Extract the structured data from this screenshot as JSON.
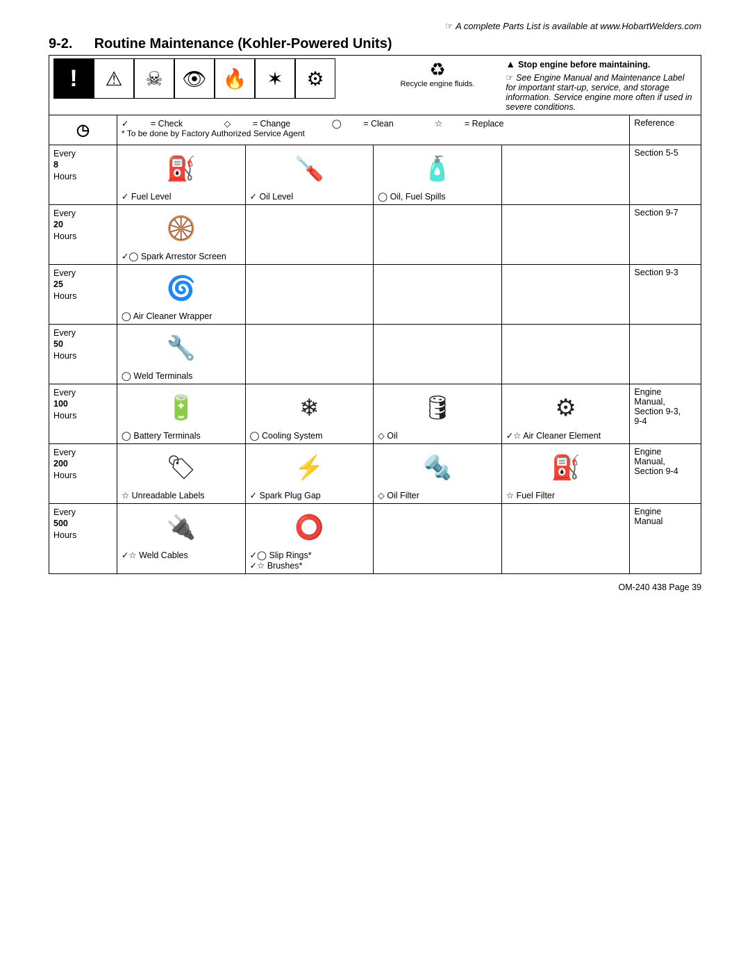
{
  "header": {
    "parts_link": "A complete Parts List is available at www.HobartWelders.com",
    "section_number": "9-2.",
    "section_title": "Routine Maintenance (Kohler-Powered Units)"
  },
  "warning": {
    "recycle_label": "Recycle engine\nfluids.",
    "stop_bold": "Stop engine before maintaining.",
    "stop_note": "See  Engine Manual and Maintenance Label for important start-up, service, and storage information.  Service engine more often if used in severe conditions."
  },
  "legend": {
    "check": "= Check",
    "change": "= Change",
    "clean": "= Clean",
    "replace": "= Replace",
    "note": "* To be done by Factory Authorized Service Agent",
    "reference": "Reference"
  },
  "rows": [
    {
      "interval": "Every\n<b>8</b>\nHours",
      "tasks": [
        {
          "glyph": "⛽",
          "sym": "✓",
          "label": "Fuel Level"
        },
        {
          "glyph": "🪛",
          "sym": "✓",
          "label": "Oil Level"
        },
        {
          "glyph": "🧴",
          "sym": "◯",
          "label": "Oil, Fuel Spills"
        },
        {
          "glyph": "",
          "sym": "",
          "label": ""
        }
      ],
      "ref": "Section 5-5"
    },
    {
      "interval": "Every\n<b>20</b>\nHours",
      "tasks": [
        {
          "glyph": "🛞",
          "sym": "✓◯",
          "label": "Spark Arrestor Screen"
        },
        {
          "glyph": "",
          "sym": "",
          "label": ""
        },
        {
          "glyph": "",
          "sym": "",
          "label": ""
        },
        {
          "glyph": "",
          "sym": "",
          "label": ""
        }
      ],
      "ref": "Section 9-7"
    },
    {
      "interval": "Every\n<b>25</b>\nHours",
      "tasks": [
        {
          "glyph": "🌀",
          "sym": "◯",
          "label": "Air Cleaner Wrapper"
        },
        {
          "glyph": "",
          "sym": "",
          "label": ""
        },
        {
          "glyph": "",
          "sym": "",
          "label": ""
        },
        {
          "glyph": "",
          "sym": "",
          "label": ""
        }
      ],
      "ref": "Section 9-3"
    },
    {
      "interval": "Every\n<b>50</b>\nHours",
      "tasks": [
        {
          "glyph": "🔧",
          "sym": "◯",
          "label": "Weld Terminals"
        },
        {
          "glyph": "",
          "sym": "",
          "label": ""
        },
        {
          "glyph": "",
          "sym": "",
          "label": ""
        },
        {
          "glyph": "",
          "sym": "",
          "label": ""
        }
      ],
      "ref": ""
    },
    {
      "interval": "Every\n<b>100</b>\nHours",
      "tasks": [
        {
          "glyph": "🔋",
          "sym": "◯",
          "label": "Battery Terminals"
        },
        {
          "glyph": "❄",
          "sym": "◯",
          "label": "Cooling System"
        },
        {
          "glyph": "🛢",
          "sym": "◇",
          "label": "Oil"
        },
        {
          "glyph": "⚙",
          "sym": "✓☆",
          "label": "Air Cleaner Element"
        }
      ],
      "ref": "Engine\nManual,\nSection 9-3,\n9-4"
    },
    {
      "interval": "Every\n<b>200</b>\nHours",
      "tasks": [
        {
          "glyph": "🏷",
          "sym": "☆",
          "label": "Unreadable Labels"
        },
        {
          "glyph": "⚡",
          "sym": "✓",
          "label": "Spark Plug Gap"
        },
        {
          "glyph": "🔩",
          "sym": "◇",
          "label": "Oil Filter"
        },
        {
          "glyph": "⛽",
          "sym": "☆",
          "label": "Fuel Filter"
        }
      ],
      "ref": "Engine\nManual,\nSection 9-4"
    },
    {
      "interval": "Every\n<b>500</b>\nHours",
      "tasks": [
        {
          "glyph": "🔌",
          "sym": "✓☆",
          "label": "Weld Cables"
        },
        {
          "glyph": "⭕",
          "sym": "",
          "label": "✓◯ Slip Rings*\n✓☆  Brushes*"
        },
        {
          "glyph": "",
          "sym": "",
          "label": ""
        },
        {
          "glyph": "",
          "sym": "",
          "label": ""
        }
      ],
      "ref": "Engine\nManual"
    }
  ],
  "footer": "OM-240 438 Page 39",
  "layout": {
    "col_widths_pct": [
      8,
      18,
      18,
      18,
      18,
      10
    ],
    "border_color": "#000000",
    "background": "#ffffff"
  }
}
